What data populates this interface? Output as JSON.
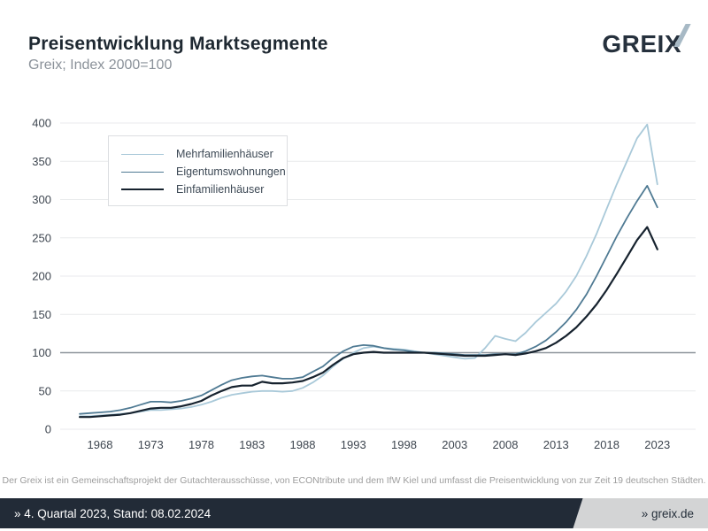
{
  "header": {
    "title": "Preisentwicklung Marktsegmente",
    "subtitle": "Greix; Index 2000=100",
    "logo_text_main": "GREI",
    "logo_text_x": "X"
  },
  "chart_data": {
    "type": "line",
    "title": "Preisentwicklung Marktsegmente",
    "subtitle": "Greix; Index 2000=100",
    "xlabel": "",
    "ylabel": "",
    "xlim": [
      1966,
      2024
    ],
    "ylim": [
      0,
      400
    ],
    "grid": "horizontal",
    "baseline_value": 100,
    "legend_position": "top-left",
    "y_ticks": [
      0,
      50,
      100,
      150,
      200,
      250,
      300,
      350,
      400
    ],
    "x_ticks": [
      1968,
      1973,
      1978,
      1983,
      1988,
      1993,
      1998,
      2003,
      2008,
      2013,
      2018,
      2023
    ],
    "x": [
      1966,
      1967,
      1968,
      1969,
      1970,
      1971,
      1972,
      1973,
      1974,
      1975,
      1976,
      1977,
      1978,
      1979,
      1980,
      1981,
      1982,
      1983,
      1984,
      1985,
      1986,
      1987,
      1988,
      1989,
      1990,
      1991,
      1992,
      1993,
      1994,
      1995,
      1996,
      1997,
      1998,
      1999,
      2000,
      2001,
      2002,
      2003,
      2004,
      2005,
      2006,
      2007,
      2008,
      2009,
      2010,
      2011,
      2012,
      2013,
      2014,
      2015,
      2016,
      2017,
      2018,
      2019,
      2020,
      2021,
      2022,
      2023
    ],
    "series": [
      {
        "name": "Mehrfamilienhäuser",
        "color": "#a9c9d9",
        "stroke_width": 1.8,
        "values": [
          17,
          17,
          18,
          19,
          20,
          21,
          23,
          25,
          25,
          26,
          27,
          29,
          32,
          36,
          41,
          45,
          47,
          49,
          50,
          50,
          49,
          50,
          54,
          61,
          70,
          82,
          92,
          100,
          106,
          108,
          106,
          105,
          104,
          102,
          100,
          98,
          96,
          94,
          92,
          93,
          106,
          122,
          118,
          115,
          126,
          140,
          152,
          164,
          180,
          200,
          226,
          255,
          288,
          320,
          350,
          380,
          398,
          320
        ]
      },
      {
        "name": "Eigentumswohnungen",
        "color": "#4f7a93",
        "stroke_width": 1.8,
        "values": [
          20,
          21,
          22,
          23,
          25,
          28,
          32,
          36,
          36,
          35,
          37,
          40,
          44,
          51,
          58,
          64,
          67,
          69,
          70,
          68,
          66,
          66,
          68,
          75,
          82,
          93,
          102,
          108,
          110,
          109,
          106,
          104,
          103,
          101,
          100,
          100,
          99,
          98,
          97,
          97,
          97,
          98,
          98,
          98,
          102,
          108,
          116,
          127,
          140,
          156,
          176,
          200,
          226,
          252,
          276,
          298,
          318,
          290
        ]
      },
      {
        "name": "Einfamilienhäuser",
        "color": "#16222e",
        "stroke_width": 2.2,
        "values": [
          16,
          16,
          17,
          18,
          19,
          21,
          24,
          27,
          28,
          28,
          30,
          33,
          37,
          44,
          50,
          55,
          57,
          57,
          62,
          60,
          60,
          61,
          63,
          68,
          74,
          84,
          93,
          98,
          100,
          101,
          100,
          100,
          100,
          100,
          100,
          99,
          98,
          97,
          96,
          96,
          96,
          97,
          98,
          97,
          99,
          102,
          106,
          113,
          122,
          133,
          147,
          163,
          182,
          203,
          225,
          247,
          264,
          235
        ]
      }
    ],
    "colors": {
      "grid": "#e8eaec",
      "baseline": "#8e949b",
      "tick_label": "#3e4650"
    }
  },
  "footnote": "Der Greix ist ein Gemeinschaftsprojekt der Gutachterausschüsse, von ECONtribute und dem IfW Kiel und umfasst die Preisentwicklung von zur Zeit 19 deutschen Städten.",
  "footer": {
    "left": "» 4. Quartal 2023, Stand: 08.02.2024",
    "right": "» greix.de"
  }
}
